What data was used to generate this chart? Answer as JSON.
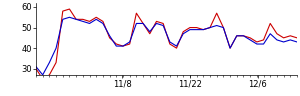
{
  "x_tick_positions": [
    0.33,
    0.59,
    0.85
  ],
  "x_tick_labels": [
    "11/8",
    "11/22",
    "12/6"
  ],
  "ylim": [
    27,
    62
  ],
  "yticks": [
    30,
    40,
    50,
    60
  ],
  "xlim": [
    0,
    1
  ],
  "red_y": [
    30,
    25,
    27,
    33,
    58,
    59,
    54,
    54,
    53,
    55,
    53,
    45,
    42,
    41,
    42,
    57,
    52,
    47,
    53,
    52,
    42,
    40,
    48,
    50,
    50,
    49,
    50,
    57,
    50,
    40,
    46,
    46,
    45,
    43,
    44,
    52,
    47,
    45,
    46,
    45
  ],
  "blue_y": [
    31,
    27,
    33,
    40,
    54,
    55,
    54,
    53,
    52,
    54,
    52,
    46,
    41,
    41,
    43,
    52,
    52,
    48,
    52,
    51,
    43,
    41,
    47,
    49,
    49,
    49,
    50,
    51,
    50,
    40,
    46,
    46,
    44,
    42,
    42,
    47,
    44,
    43,
    44,
    43
  ],
  "red_color": "#cc0000",
  "blue_color": "#0000cc",
  "bg_color": "#ffffff",
  "line_width": 0.8,
  "tick_fontsize": 6.0,
  "minor_tick_count": 39
}
